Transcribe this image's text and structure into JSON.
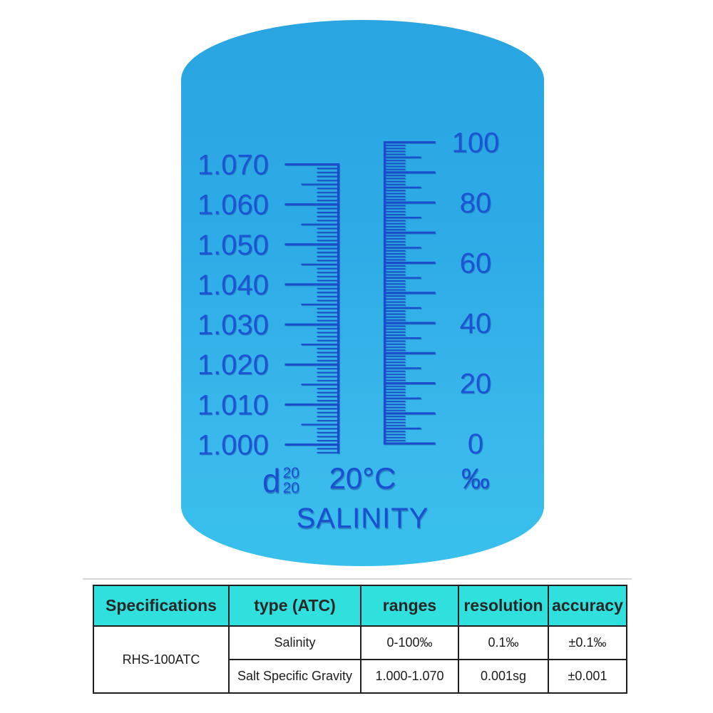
{
  "reticle": {
    "density_symbol": {
      "base": "d",
      "sup": "20",
      "sub": "20"
    },
    "temperature_label": "20°C",
    "permille_label": "‰",
    "title": "SALINITY"
  },
  "chart_data": [
    {
      "type": "scale",
      "name": "Salt Specific Gravity scale (d 20/20)",
      "orientation": "vertical",
      "side": "left",
      "min": 1.0,
      "max": 1.07,
      "minor_step": 0.001,
      "medium_step": 0.005,
      "major_step": 0.01,
      "tick_labels": [
        {
          "v": 1.07,
          "t": "1.070"
        },
        {
          "v": 1.06,
          "t": "1.060"
        },
        {
          "v": 1.05,
          "t": "1.050"
        },
        {
          "v": 1.04,
          "t": "1.040"
        },
        {
          "v": 1.03,
          "t": "1.030"
        },
        {
          "v": 1.02,
          "t": "1.020"
        },
        {
          "v": 1.01,
          "t": "1.010"
        },
        {
          "v": 1.0,
          "t": "1.000"
        }
      ],
      "unit_label": "d 20/20"
    },
    {
      "type": "scale",
      "name": "Salinity scale",
      "orientation": "vertical",
      "side": "right",
      "min": 0,
      "max": 100,
      "minor_step": 1,
      "medium_step": 5,
      "major_step": 10,
      "tick_labels": [
        {
          "v": 100,
          "t": "100"
        },
        {
          "v": 80,
          "t": "80"
        },
        {
          "v": 60,
          "t": "60"
        },
        {
          "v": 40,
          "t": "40"
        },
        {
          "v": 20,
          "t": "20"
        },
        {
          "v": 0,
          "t": "0"
        }
      ],
      "unit_label": "‰"
    }
  ],
  "table": {
    "headers": [
      "Specifications",
      "type (ATC)",
      "ranges",
      "resolution",
      "accuracy"
    ],
    "model": "RHS-100ATC",
    "rows": [
      {
        "type": "Salinity",
        "range": "0-100‰",
        "resolution": "0.1‰",
        "accuracy": "±0.1‰"
      },
      {
        "type": "Salt Specific Gravity",
        "range": "1.000-1.070",
        "resolution": "0.001sg",
        "accuracy": "±0.001"
      }
    ]
  },
  "colors": {
    "lens_blue_top": "#29a6e1",
    "lens_blue_bottom": "#38c0ec",
    "marking_blue": "#1d54d6",
    "tick_blue": "#1a4ccd",
    "table_header_bg": "#2fe0dd",
    "table_border": "#1f1f1f",
    "table_text": "#1c1c1c"
  }
}
